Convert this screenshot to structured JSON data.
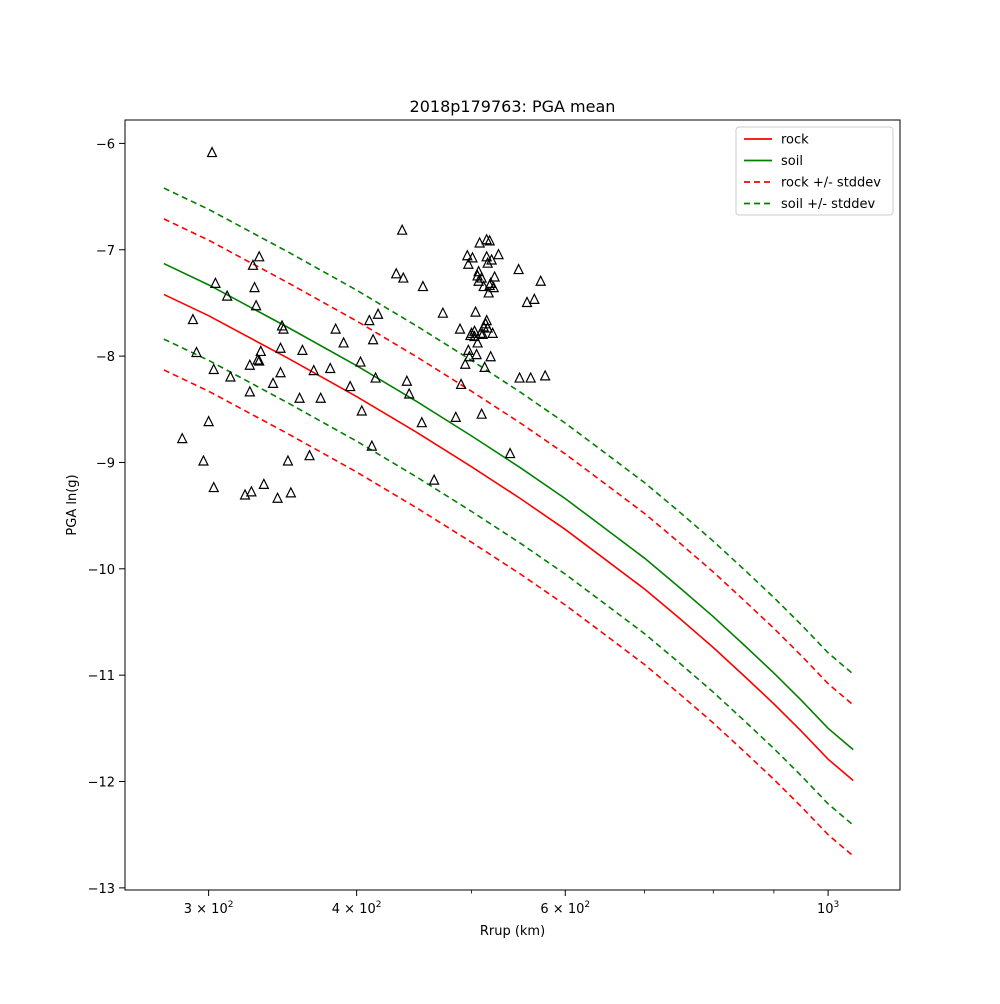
{
  "chart_data": {
    "type": "line",
    "title": "2018p179763: PGA mean",
    "xlabel": "Rrup (km)",
    "ylabel": "PGA ln(g)",
    "x_scale": "log",
    "xlim": [
      255,
      1150
    ],
    "ylim": [
      -13.02,
      -5.78
    ],
    "grid": false,
    "legend_position": "top-right",
    "x_ticks": [
      {
        "value": 300,
        "base": "3 × 10",
        "exp": "2"
      },
      {
        "value": 400,
        "base": "4 × 10",
        "exp": "2"
      },
      {
        "value": 600,
        "base": "6 × 10",
        "exp": "2"
      },
      {
        "value": 1000,
        "base": "10",
        "exp": "3"
      }
    ],
    "x_minor_ticks": [
      500,
      700,
      800,
      900
    ],
    "y_ticks": [
      {
        "value": -6,
        "label": "−6"
      },
      {
        "value": -7,
        "label": "−7"
      },
      {
        "value": -8,
        "label": "−8"
      },
      {
        "value": -9,
        "label": "−9"
      },
      {
        "value": -10,
        "label": "−10"
      },
      {
        "value": -11,
        "label": "−11"
      },
      {
        "value": -12,
        "label": "−12"
      },
      {
        "value": -13,
        "label": "−13"
      }
    ],
    "x": [
      275,
      300,
      350,
      400,
      450,
      500,
      550,
      600,
      650,
      700,
      750,
      800,
      850,
      900,
      950,
      1000,
      1050
    ],
    "series": [
      {
        "name": "rock",
        "color": "#ff0000",
        "dash": "solid",
        "values": [
          -7.42,
          -7.62,
          -8.02,
          -8.38,
          -8.72,
          -9.04,
          -9.34,
          -9.63,
          -9.92,
          -10.19,
          -10.47,
          -10.74,
          -11.01,
          -11.27,
          -11.53,
          -11.79,
          -11.99
        ]
      },
      {
        "name": "soil",
        "color": "#008000",
        "dash": "solid",
        "values": [
          -7.13,
          -7.33,
          -7.73,
          -8.09,
          -8.43,
          -8.75,
          -9.05,
          -9.34,
          -9.63,
          -9.9,
          -10.18,
          -10.45,
          -10.72,
          -10.98,
          -11.24,
          -11.5,
          -11.7
        ]
      },
      {
        "name": "rock +/- stddev",
        "color": "#ff0000",
        "dash": "dashed",
        "values": [
          -6.71,
          -6.91,
          -7.31,
          -7.67,
          -8.01,
          -8.33,
          -8.63,
          -8.92,
          -9.21,
          -9.48,
          -9.76,
          -10.03,
          -10.3,
          -10.56,
          -10.82,
          -11.08,
          -11.28
        ]
      },
      {
        "name": "",
        "color": "#ff0000",
        "dash": "dashed",
        "values": [
          -8.13,
          -8.33,
          -8.73,
          -9.09,
          -9.43,
          -9.75,
          -10.05,
          -10.34,
          -10.63,
          -10.9,
          -11.18,
          -11.45,
          -11.72,
          -11.98,
          -12.24,
          -12.5,
          -12.7
        ]
      },
      {
        "name": "soil +/- stddev",
        "color": "#008000",
        "dash": "dashed",
        "values": [
          -6.42,
          -6.62,
          -7.02,
          -7.38,
          -7.72,
          -8.04,
          -8.34,
          -8.63,
          -8.92,
          -9.19,
          -9.47,
          -9.74,
          -10.01,
          -10.27,
          -10.53,
          -10.79,
          -10.99
        ]
      },
      {
        "name": "",
        "color": "#008000",
        "dash": "dashed",
        "values": [
          -7.84,
          -8.04,
          -8.44,
          -8.8,
          -9.14,
          -9.46,
          -9.76,
          -10.05,
          -10.34,
          -10.61,
          -10.89,
          -11.16,
          -11.43,
          -11.69,
          -11.95,
          -12.21,
          -12.41
        ]
      }
    ],
    "observations": {
      "marker": "triangle",
      "points": [
        [
          285,
          -8.78
        ],
        [
          291,
          -7.66
        ],
        [
          293,
          -7.97
        ],
        [
          297,
          -8.99
        ],
        [
          300,
          -8.62
        ],
        [
          302,
          -6.09
        ],
        [
          303,
          -8.13
        ],
        [
          303,
          -9.24
        ],
        [
          304,
          -7.32
        ],
        [
          311,
          -7.44
        ],
        [
          313,
          -8.2
        ],
        [
          322,
          -9.31
        ],
        [
          325,
          -8.34
        ],
        [
          325,
          -8.09
        ],
        [
          326,
          -9.28
        ],
        [
          327,
          -7.15
        ],
        [
          328,
          -7.36
        ],
        [
          329,
          -7.53
        ],
        [
          330,
          -8.04
        ],
        [
          331,
          -8.05
        ],
        [
          331,
          -7.07
        ],
        [
          332,
          -7.96
        ],
        [
          334,
          -9.21
        ],
        [
          340,
          -8.26
        ],
        [
          343,
          -9.34
        ],
        [
          345,
          -7.93
        ],
        [
          345,
          -8.16
        ],
        [
          346,
          -7.72
        ],
        [
          347,
          -7.75
        ],
        [
          350,
          -8.99
        ],
        [
          352,
          -9.29
        ],
        [
          358,
          -8.4
        ],
        [
          360,
          -7.95
        ],
        [
          365,
          -8.94
        ],
        [
          368,
          -8.14
        ],
        [
          373,
          -8.4
        ],
        [
          380,
          -8.12
        ],
        [
          384,
          -7.75
        ],
        [
          390,
          -7.88
        ],
        [
          395,
          -8.29
        ],
        [
          403,
          -8.06
        ],
        [
          404,
          -8.52
        ],
        [
          410,
          -7.67
        ],
        [
          412,
          -8.85
        ],
        [
          413,
          -7.85
        ],
        [
          415,
          -8.21
        ],
        [
          417,
          -7.61
        ],
        [
          432,
          -7.23
        ],
        [
          437,
          -6.82
        ],
        [
          438,
          -7.27
        ],
        [
          441,
          -8.24
        ],
        [
          443,
          -8.36
        ],
        [
          454,
          -8.63
        ],
        [
          455,
          -7.35
        ],
        [
          465,
          -9.17
        ],
        [
          473,
          -7.6
        ],
        [
          485,
          -8.58
        ],
        [
          489,
          -7.75
        ],
        [
          490,
          -8.27
        ],
        [
          494,
          -8.08
        ],
        [
          496,
          -7.06
        ],
        [
          497,
          -7.95
        ],
        [
          497,
          -7.14
        ],
        [
          498,
          -8.01
        ],
        [
          499,
          -7.81
        ],
        [
          500,
          -7.79
        ],
        [
          501,
          -7.08
        ],
        [
          503,
          -7.82
        ],
        [
          503,
          -7.77
        ],
        [
          504,
          -7.59
        ],
        [
          505,
          -7.99
        ],
        [
          506,
          -7.88
        ],
        [
          506,
          -7.25
        ],
        [
          507,
          -7.3
        ],
        [
          507,
          -7.21
        ],
        [
          508,
          -6.94
        ],
        [
          509,
          -7.79
        ],
        [
          510,
          -7.27
        ],
        [
          510,
          -8.55
        ],
        [
          511,
          -7.8
        ],
        [
          512,
          -7.73
        ],
        [
          512,
          -7.35
        ],
        [
          513,
          -8.11
        ],
        [
          514,
          -7.7
        ],
        [
          515,
          -6.91
        ],
        [
          515,
          -7.67
        ],
        [
          515,
          -7.07
        ],
        [
          516,
          -7.13
        ],
        [
          516,
          -7.74
        ],
        [
          517,
          -7.41
        ],
        [
          518,
          -7.34
        ],
        [
          518,
          -6.92
        ],
        [
          519,
          -8.01
        ],
        [
          519,
          -7.32
        ],
        [
          520,
          -7.1
        ],
        [
          521,
          -7.79
        ],
        [
          522,
          -7.36
        ],
        [
          523,
          -7.26
        ],
        [
          527,
          -7.05
        ],
        [
          539,
          -8.92
        ],
        [
          548,
          -7.19
        ],
        [
          549,
          -8.21
        ],
        [
          557,
          -7.5
        ],
        [
          561,
          -8.21
        ],
        [
          565,
          -7.47
        ],
        [
          572,
          -7.3
        ],
        [
          577,
          -8.19
        ]
      ]
    }
  }
}
